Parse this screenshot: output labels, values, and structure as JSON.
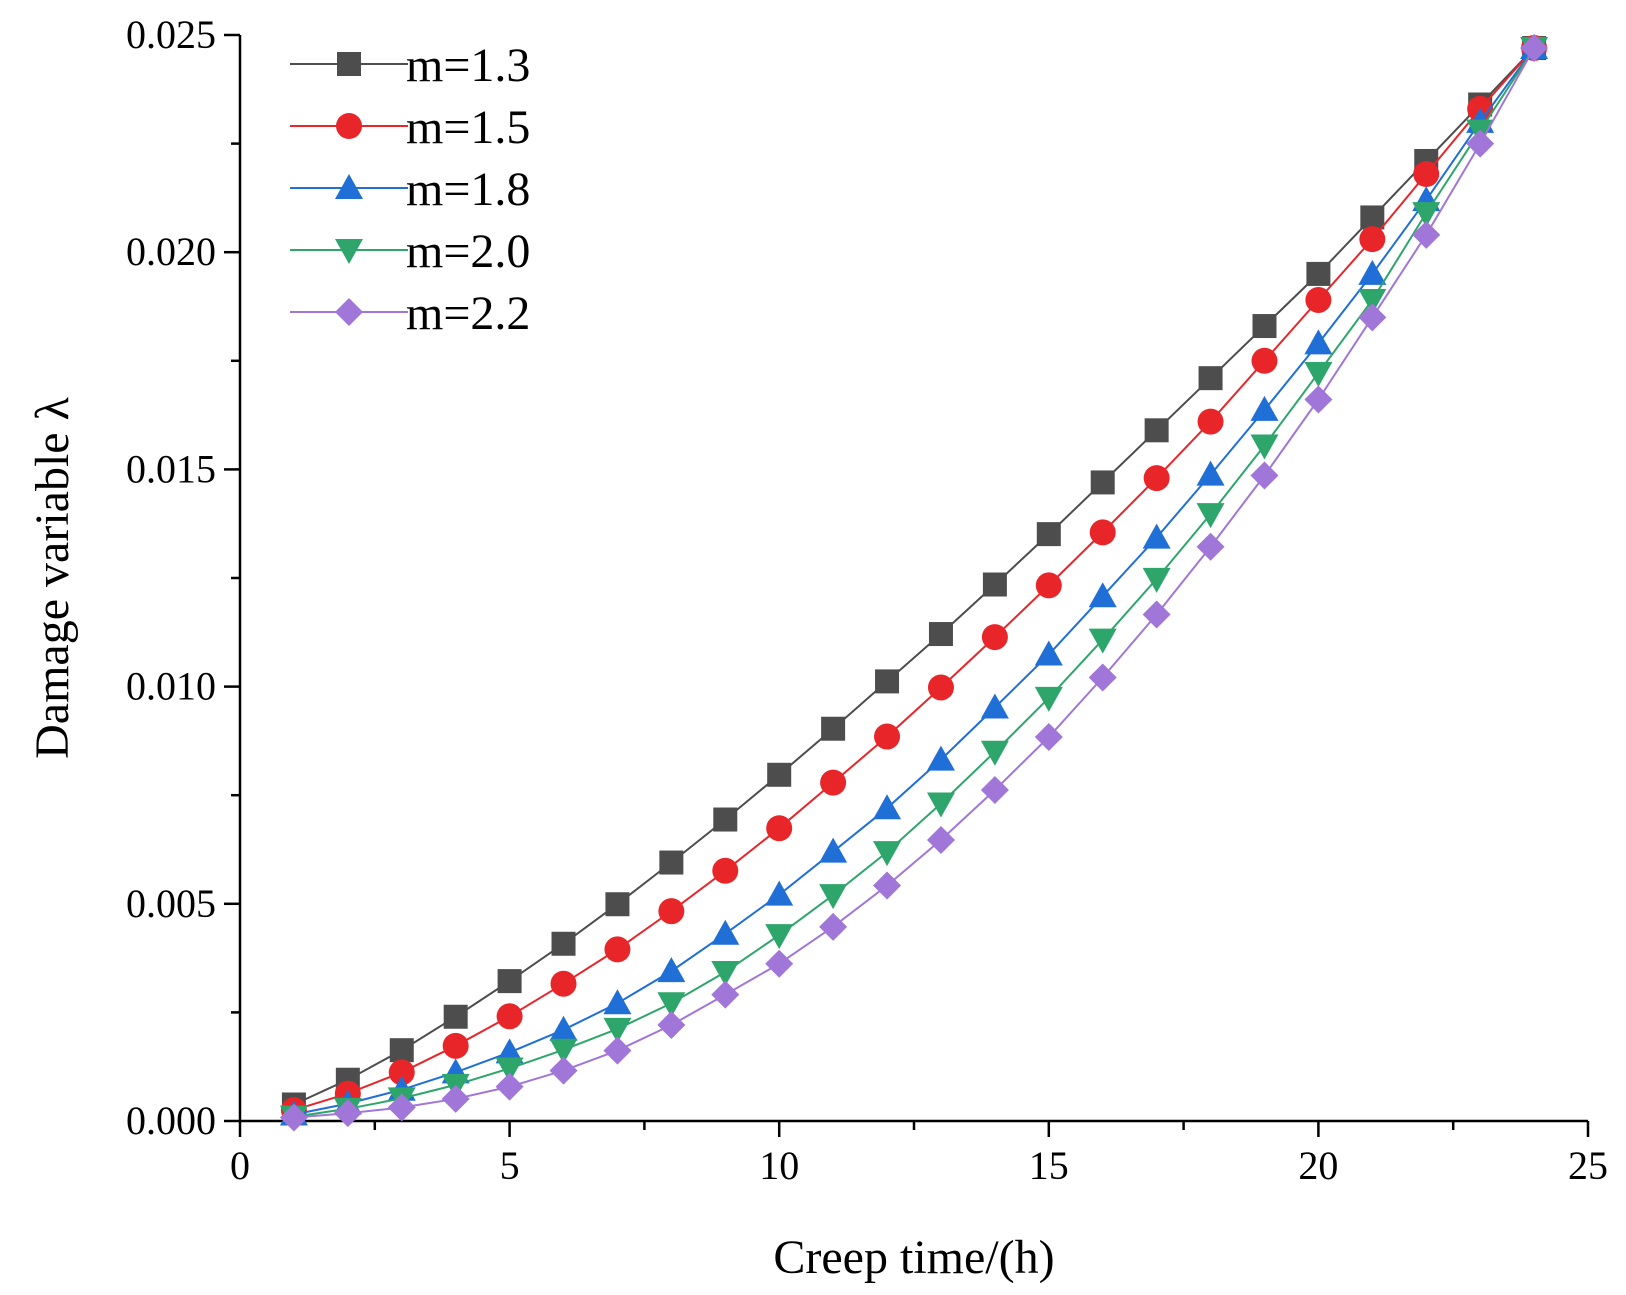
{
  "chart_data": {
    "type": "line",
    "title": "",
    "xlabel": "Creep time/(h)",
    "ylabel": "Damage variable λ",
    "xlim": [
      0,
      25
    ],
    "ylim": [
      0,
      0.025
    ],
    "x_ticks": [
      0,
      5,
      10,
      15,
      20,
      25
    ],
    "x_tick_labels": [
      "0",
      "5",
      "10",
      "15",
      "20",
      "25"
    ],
    "y_ticks": [
      0,
      0.005,
      0.01,
      0.015,
      0.02,
      0.025
    ],
    "y_tick_labels": [
      "0.000",
      "0.005",
      "0.010",
      "0.015",
      "0.020",
      "0.025"
    ],
    "legend_position": "top-left",
    "x": [
      1,
      2,
      3,
      4,
      5,
      6,
      7,
      8,
      9,
      10,
      11,
      12,
      13,
      14,
      15,
      16,
      17,
      18,
      19,
      20,
      21,
      22,
      23,
      24
    ],
    "series": [
      {
        "name": "m=1.3",
        "color": "#4d4d4d",
        "marker": "square",
        "values": [
          0.00038,
          0.00095,
          0.00163,
          0.0024,
          0.00322,
          0.00408,
          0.00499,
          0.00595,
          0.00694,
          0.00797,
          0.00903,
          0.01012,
          0.01121,
          0.01235,
          0.01351,
          0.0147,
          0.0159,
          0.0171,
          0.0183,
          0.0195,
          0.0208,
          0.0221,
          0.0234,
          0.0247
        ]
      },
      {
        "name": "m=1.5",
        "color": "#e8262a",
        "marker": "circle",
        "values": [
          0.00025,
          0.00063,
          0.00112,
          0.00173,
          0.00241,
          0.00316,
          0.00395,
          0.00483,
          0.00576,
          0.00674,
          0.00779,
          0.00885,
          0.00998,
          0.01114,
          0.01233,
          0.01355,
          0.0148,
          0.0161,
          0.0175,
          0.0189,
          0.0203,
          0.0218,
          0.0233,
          0.0247
        ]
      },
      {
        "name": "m=1.8",
        "color": "#1f6fd6",
        "marker": "triangle-up",
        "values": [
          0.00015,
          0.0004,
          0.00072,
          0.00112,
          0.00158,
          0.0021,
          0.00271,
          0.00345,
          0.00431,
          0.00521,
          0.0062,
          0.0072,
          0.00832,
          0.00952,
          0.01074,
          0.01208,
          0.01343,
          0.01488,
          0.01637,
          0.0179,
          0.0195,
          0.0212,
          0.023,
          0.0247
        ]
      },
      {
        "name": "m=2.0",
        "color": "#2ea66b",
        "marker": "triangle-down",
        "values": [
          0.0001,
          0.00028,
          0.00052,
          0.00083,
          0.00121,
          0.00164,
          0.00212,
          0.00271,
          0.00343,
          0.00428,
          0.0052,
          0.00619,
          0.00731,
          0.0085,
          0.00974,
          0.01108,
          0.01248,
          0.01397,
          0.01555,
          0.01722,
          0.0189,
          0.0209,
          0.0228,
          0.0247
        ]
      },
      {
        "name": "m=2.2",
        "color": "#a076d9",
        "marker": "diamond",
        "values": [
          8e-05,
          0.00018,
          0.00031,
          0.00051,
          0.00079,
          0.00116,
          0.00162,
          0.00221,
          0.00291,
          0.00362,
          0.00447,
          0.00542,
          0.00647,
          0.00762,
          0.00884,
          0.01021,
          0.01166,
          0.01322,
          0.01486,
          0.01661,
          0.0185,
          0.0204,
          0.0225,
          0.0247
        ]
      }
    ]
  }
}
